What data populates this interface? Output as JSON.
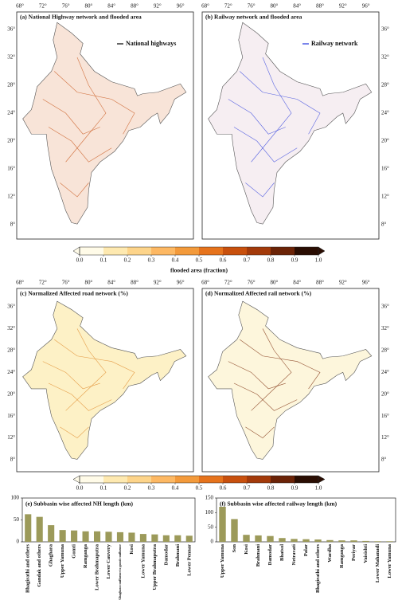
{
  "maps": [
    {
      "title": "(a) National Highway network and flooded area",
      "legend": "National highways",
      "legend_color": "#000000",
      "fill": "#f8e4d8",
      "line": "#c8561c"
    },
    {
      "title": "(b) Railway network and flooded area",
      "legend": "Railway network",
      "legend_color": "#2233dd",
      "fill": "#f6eef2",
      "line": "#3344dd"
    },
    {
      "title": "(c) Normalized Affected road network (%)",
      "fill": "#fdf1c6",
      "line": "#e08a2a"
    },
    {
      "title": "(d) Normalized Affected rail network (%)",
      "fill": "#fdf6dc",
      "line": "#7a2a0a"
    }
  ],
  "lon_labels": [
    "68°",
    "72°",
    "76°",
    "80°",
    "84°",
    "88°",
    "92°",
    "96°"
  ],
  "lat_labels": [
    "36°",
    "32°",
    "28°",
    "24°",
    "20°",
    "16°",
    "12°",
    "8°"
  ],
  "colorbar": {
    "label": "flooded area (fraction)",
    "lim": [
      0,
      1
    ],
    "ticks": [
      {
        "value": 0,
        "label": "0.0"
      },
      0.1,
      0.2,
      0.3,
      0.4,
      0.5,
      0.6,
      0.7,
      0.8,
      0.9,
      {
        "value": 1,
        "label": "1.0"
      }
    ],
    "colors": [
      "#fffbe8",
      "#fee9b0",
      "#fdd48a",
      "#fdb863",
      "#f39a3b",
      "#e6731c",
      "#c8500d",
      "#a33a0a",
      "#6b2307",
      "#2a0d02"
    ]
  },
  "chart_data": [
    {
      "type": "bar",
      "title": "(e) Subbasin wise affected NH length (km)",
      "color": "#9c9a5a",
      "categories": [
        "Bhagirathi and others",
        "Gandak and others",
        "Ghaghara",
        "Upper Yamuna",
        "Gomti",
        "Ramganga",
        "Lower Brahmaputra",
        "Lower Cauvery",
        "Ghaghara confluence to gomti confluence",
        "Kosi",
        "Lower Yamuna",
        "Upper Brahmaputra",
        "Damodar",
        "Brahmani",
        "Lower Pennar"
      ],
      "values": [
        63,
        57,
        38,
        27,
        26,
        24,
        24,
        23,
        22,
        21,
        18,
        17,
        15,
        15,
        14
      ],
      "ylim": [
        0,
        100
      ],
      "yticks": [
        0,
        50,
        100
      ]
    },
    {
      "type": "bar",
      "title": "(f) Subbasin wise affected railway length (km)",
      "color": "#9c9a5a",
      "categories": [
        "Upper Yamuna",
        "Son",
        "Kosi",
        "Brahmani",
        "Damodar",
        "Bhatsol",
        "Netravati",
        "Palar",
        "Bhagirathi and others",
        "Wardha",
        "Ramganga",
        "Periyar",
        "Vaisishti",
        "Lower Mahanadi",
        "Lower Yamuna"
      ],
      "values": [
        120,
        78,
        24,
        22,
        20,
        13,
        10,
        9,
        8,
        6,
        5,
        5,
        3,
        2,
        2
      ],
      "ylim": [
        0,
        150
      ],
      "yticks": [
        0,
        50,
        100,
        150
      ]
    }
  ]
}
